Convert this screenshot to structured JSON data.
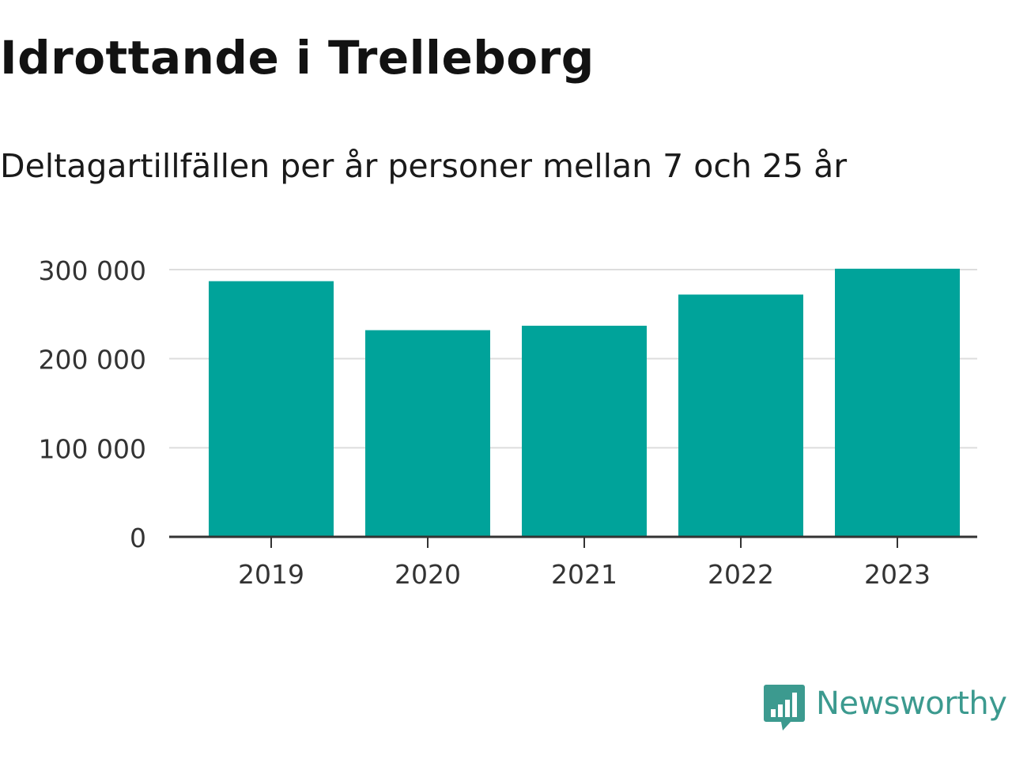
{
  "title": "Idrottande i Trelleborg",
  "subtitle": "Deltagartillfällen per år personer mellan 7 och 25 år",
  "brand": {
    "name": "Newsworthy",
    "color": "#3c9a8f",
    "icon": "newsworthy-logo-icon"
  },
  "chart_data": {
    "type": "bar",
    "title": "Idrottande i Trelleborg",
    "subtitle": "Deltagartillfällen per år personer mellan 7 och 25 år",
    "xlabel": "",
    "ylabel": "",
    "categories": [
      "2019",
      "2020",
      "2021",
      "2022",
      "2023"
    ],
    "values": [
      287000,
      232000,
      237000,
      272000,
      301000
    ],
    "ylim": [
      0,
      300000
    ],
    "yticks": [
      0,
      100000,
      200000,
      300000
    ],
    "ytick_labels": [
      "0",
      "100 000",
      "200 000",
      "300 000"
    ],
    "grid": true,
    "legend": "none",
    "colors": {
      "bar": "#00a39a",
      "grid": "#dddddd",
      "axis": "#333333"
    }
  }
}
